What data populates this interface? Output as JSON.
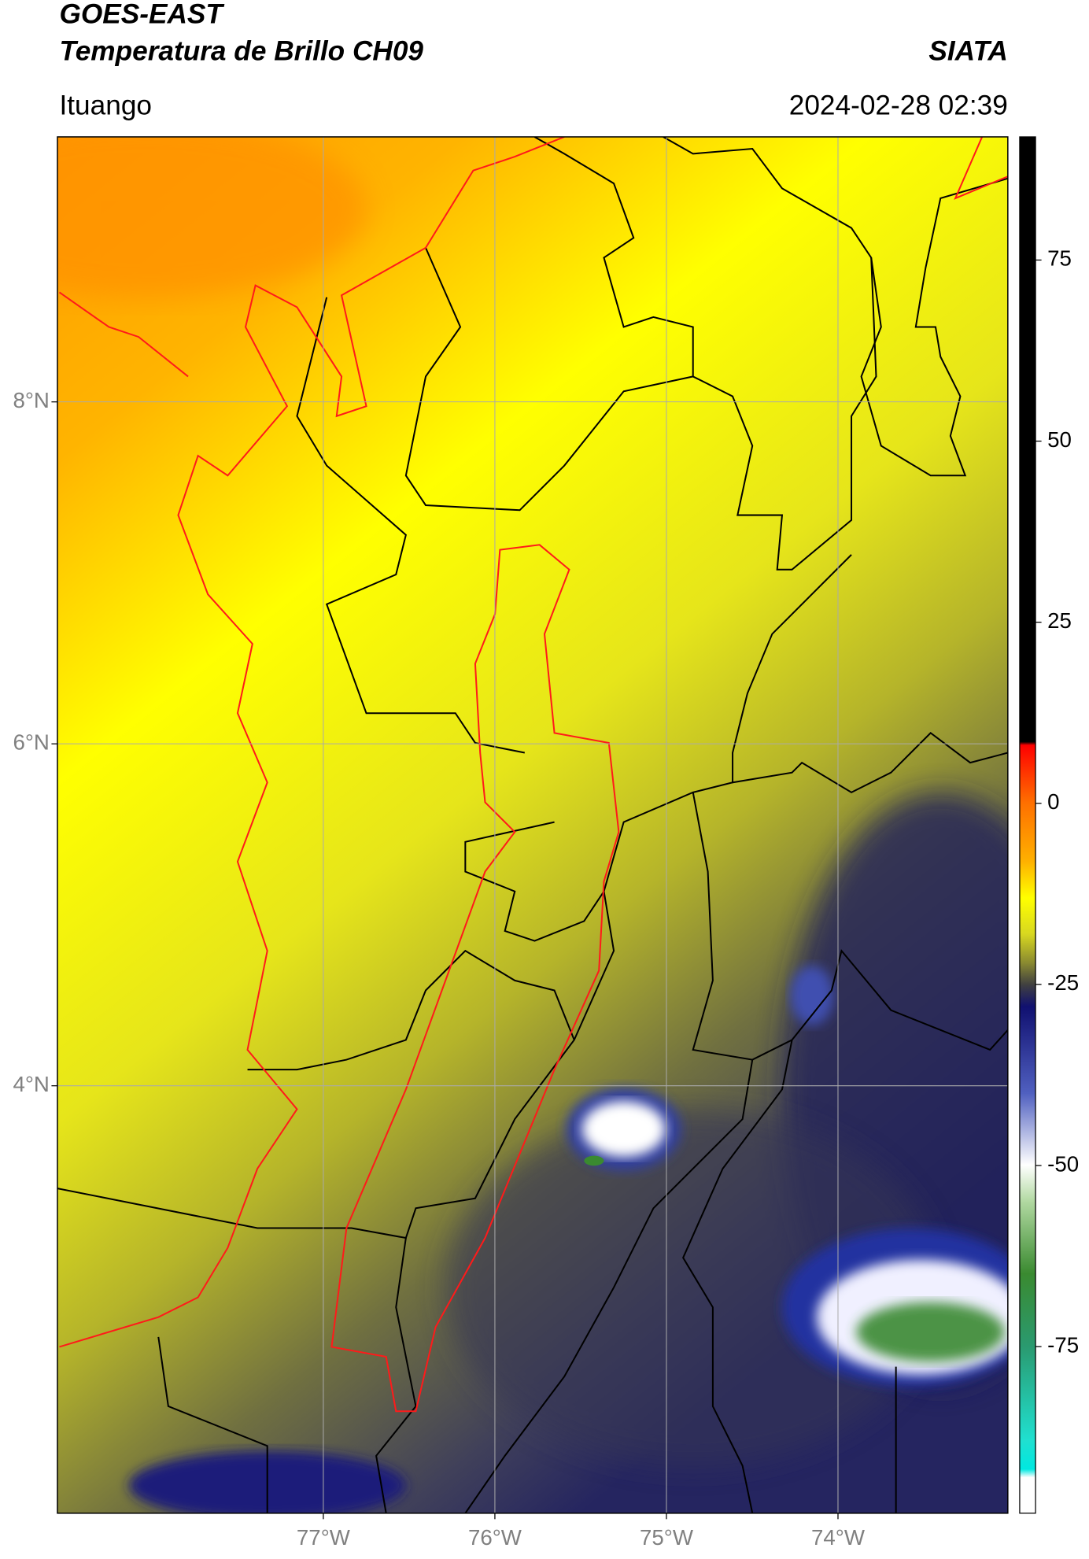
{
  "header": {
    "title": "GOES-EAST",
    "subtitle": "Temperatura de Brillo CH09",
    "brand": "SIATA",
    "region": "Ituango",
    "timestamp": "2024-02-28 02:39"
  },
  "map": {
    "xlim": [
      -78.55,
      -73.01
    ],
    "ylim": [
      1.5,
      9.55
    ],
    "xticks": [
      {
        "value": -77,
        "label": "77°W"
      },
      {
        "value": -76,
        "label": "76°W"
      },
      {
        "value": -75,
        "label": "75°W"
      },
      {
        "value": -74,
        "label": "74°W"
      }
    ],
    "yticks": [
      {
        "value": 8,
        "label": "8°N"
      },
      {
        "value": 6,
        "label": "6°N"
      },
      {
        "value": 4,
        "label": "4°N"
      }
    ],
    "grid": true
  },
  "colorbar": {
    "lim": [
      -98,
      92
    ],
    "ticks": [
      75,
      50,
      25,
      0,
      -25,
      -50,
      -75
    ]
  }
}
